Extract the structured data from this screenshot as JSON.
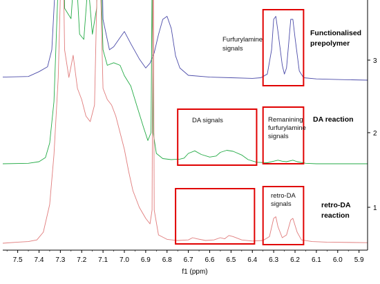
{
  "chart_data": {
    "type": "line",
    "xlabel": "f1 (ppm)",
    "x_axis_reversed": true,
    "xlim": [
      5.86,
      7.57
    ],
    "x_ticks": [
      "7.5",
      "7.4",
      "7.3",
      "7.2",
      "7.1",
      "7.0",
      "6.9",
      "6.8",
      "6.7",
      "6.6",
      "6.5",
      "6.4",
      "6.3",
      "6.2",
      "6.1",
      "6.0",
      "5.9"
    ],
    "trace_ticks": [
      "3",
      "2",
      "1"
    ],
    "colors": {
      "trace_1": "#e07b7b",
      "trace_2": "#22aa44",
      "trace_3": "#4a4aa8",
      "box": "#e00000"
    },
    "series": [
      {
        "label": "3",
        "color": "#4a4aa8",
        "points": [
          [
            7.57,
            0.05
          ],
          [
            7.45,
            0.06
          ],
          [
            7.4,
            0.14
          ],
          [
            7.36,
            0.22
          ],
          [
            7.34,
            0.5
          ],
          [
            7.31,
            2.5
          ],
          [
            7.29,
            6.0
          ],
          [
            7.27,
            2.5
          ],
          [
            7.25,
            2.3
          ],
          [
            7.23,
            5.0
          ],
          [
            7.21,
            2.0
          ],
          [
            7.19,
            1.9
          ],
          [
            7.17,
            4.5
          ],
          [
            7.15,
            1.8
          ],
          [
            7.13,
            2.0
          ],
          [
            7.12,
            5.0
          ],
          [
            7.1,
            1.0
          ],
          [
            7.07,
            0.5
          ],
          [
            7.05,
            0.55
          ],
          [
            7.02,
            0.7
          ],
          [
            7.0,
            0.8
          ],
          [
            6.97,
            0.6
          ],
          [
            6.93,
            0.35
          ],
          [
            6.9,
            0.2
          ],
          [
            6.88,
            0.28
          ],
          [
            6.86,
            0.45
          ],
          [
            6.84,
            0.75
          ],
          [
            6.82,
            1.0
          ],
          [
            6.8,
            1.05
          ],
          [
            6.78,
            0.85
          ],
          [
            6.76,
            0.4
          ],
          [
            6.74,
            0.2
          ],
          [
            6.7,
            0.08
          ],
          [
            6.6,
            0.05
          ],
          [
            6.5,
            0.04
          ],
          [
            6.4,
            0.03
          ],
          [
            6.36,
            0.04
          ],
          [
            6.33,
            0.1
          ],
          [
            6.31,
            0.5
          ],
          [
            6.3,
            1.0
          ],
          [
            6.29,
            1.05
          ],
          [
            6.28,
            0.8
          ],
          [
            6.26,
            0.25
          ],
          [
            6.25,
            0.1
          ],
          [
            6.24,
            0.2
          ],
          [
            6.23,
            0.6
          ],
          [
            6.22,
            1.0
          ],
          [
            6.21,
            1.0
          ],
          [
            6.2,
            0.7
          ],
          [
            6.18,
            0.15
          ],
          [
            6.16,
            0.04
          ],
          [
            6.1,
            0.02
          ],
          [
            6.0,
            0.01
          ],
          [
            5.86,
            0.0
          ]
        ]
      },
      {
        "label": "2",
        "color": "#22aa44",
        "points": [
          [
            7.57,
            0.0
          ],
          [
            7.45,
            0.01
          ],
          [
            7.4,
            0.04
          ],
          [
            7.37,
            0.12
          ],
          [
            7.35,
            0.4
          ],
          [
            7.33,
            1.2
          ],
          [
            7.31,
            3.5
          ],
          [
            7.29,
            6.0
          ],
          [
            7.28,
            3.0
          ],
          [
            7.25,
            2.8
          ],
          [
            7.23,
            4.0
          ],
          [
            7.21,
            2.5
          ],
          [
            7.19,
            2.4
          ],
          [
            7.17,
            3.5
          ],
          [
            7.15,
            2.5
          ],
          [
            7.13,
            3.0
          ],
          [
            7.12,
            5.0
          ],
          [
            7.1,
            2.2
          ],
          [
            7.08,
            1.9
          ],
          [
            7.05,
            1.95
          ],
          [
            7.02,
            1.9
          ],
          [
            7.0,
            1.7
          ],
          [
            6.97,
            1.5
          ],
          [
            6.94,
            1.1
          ],
          [
            6.91,
            0.7
          ],
          [
            6.89,
            0.45
          ],
          [
            6.875,
            0.6
          ],
          [
            6.87,
            3.5
          ],
          [
            6.865,
            0.6
          ],
          [
            6.85,
            0.2
          ],
          [
            6.82,
            0.1
          ],
          [
            6.78,
            0.08
          ],
          [
            6.74,
            0.09
          ],
          [
            6.72,
            0.11
          ],
          [
            6.7,
            0.2
          ],
          [
            6.67,
            0.25
          ],
          [
            6.64,
            0.18
          ],
          [
            6.6,
            0.13
          ],
          [
            6.57,
            0.15
          ],
          [
            6.55,
            0.22
          ],
          [
            6.52,
            0.26
          ],
          [
            6.49,
            0.24
          ],
          [
            6.45,
            0.17
          ],
          [
            6.42,
            0.08
          ],
          [
            6.38,
            0.03
          ],
          [
            6.33,
            0.02
          ],
          [
            6.3,
            0.05
          ],
          [
            6.28,
            0.07
          ],
          [
            6.26,
            0.05
          ],
          [
            6.24,
            0.04
          ],
          [
            6.21,
            0.07
          ],
          [
            6.19,
            0.04
          ],
          [
            6.15,
            0.01
          ],
          [
            6.1,
            0.0
          ],
          [
            5.86,
            0.0
          ]
        ]
      },
      {
        "label": "1",
        "color": "#e07b7b",
        "points": [
          [
            7.57,
            0.0
          ],
          [
            7.5,
            0.02
          ],
          [
            7.45,
            0.03
          ],
          [
            7.41,
            0.06
          ],
          [
            7.38,
            0.2
          ],
          [
            7.35,
            0.7
          ],
          [
            7.33,
            1.6
          ],
          [
            7.31,
            3.0
          ],
          [
            7.29,
            6.0
          ],
          [
            7.28,
            3.5
          ],
          [
            7.26,
            3.0
          ],
          [
            7.24,
            3.4
          ],
          [
            7.22,
            2.8
          ],
          [
            7.2,
            2.6
          ],
          [
            7.18,
            2.3
          ],
          [
            7.16,
            2.2
          ],
          [
            7.14,
            2.5
          ],
          [
            7.12,
            6.0
          ],
          [
            7.1,
            2.8
          ],
          [
            7.08,
            2.6
          ],
          [
            7.06,
            2.5
          ],
          [
            7.04,
            2.3
          ],
          [
            7.02,
            2.0
          ],
          [
            7.0,
            1.7
          ],
          [
            6.98,
            1.3
          ],
          [
            6.96,
            0.95
          ],
          [
            6.93,
            0.65
          ],
          [
            6.9,
            0.45
          ],
          [
            6.88,
            0.35
          ],
          [
            6.87,
            0.6
          ],
          [
            6.865,
            6.0
          ],
          [
            6.86,
            0.6
          ],
          [
            6.84,
            0.15
          ],
          [
            6.8,
            0.07
          ],
          [
            6.75,
            0.05
          ],
          [
            6.7,
            0.06
          ],
          [
            6.68,
            0.1
          ],
          [
            6.66,
            0.08
          ],
          [
            6.62,
            0.05
          ],
          [
            6.58,
            0.06
          ],
          [
            6.55,
            0.1
          ],
          [
            6.53,
            0.08
          ],
          [
            6.51,
            0.14
          ],
          [
            6.49,
            0.12
          ],
          [
            6.45,
            0.06
          ],
          [
            6.4,
            0.04
          ],
          [
            6.35,
            0.05
          ],
          [
            6.32,
            0.12
          ],
          [
            6.3,
            0.45
          ],
          [
            6.29,
            0.48
          ],
          [
            6.28,
            0.3
          ],
          [
            6.26,
            0.1
          ],
          [
            6.24,
            0.15
          ],
          [
            6.22,
            0.42
          ],
          [
            6.21,
            0.45
          ],
          [
            6.19,
            0.2
          ],
          [
            6.17,
            0.06
          ],
          [
            6.12,
            0.03
          ],
          [
            6.05,
            0.02
          ],
          [
            5.86,
            0.01
          ]
        ]
      }
    ],
    "boxes": [
      {
        "x_range": [
          6.35,
          6.16
        ],
        "trace": "3",
        "text": "",
        "bold": false
      },
      {
        "x_range": [
          6.75,
          6.38
        ],
        "trace": "2",
        "text": "DA signals",
        "bold": false
      },
      {
        "x_range": [
          6.35,
          6.16
        ],
        "trace": "2",
        "text": "Remanining furfurylamine signals",
        "bold": false
      },
      {
        "x_range": [
          6.76,
          6.39
        ],
        "trace": "1",
        "text": "",
        "bold": false
      },
      {
        "x_range": [
          6.35,
          6.16
        ],
        "trace": "1",
        "text": "retro-DA signals",
        "bold": false
      }
    ],
    "annotations": [
      {
        "text": "Furfurylamine signals",
        "lines": [
          "Furfurylamine",
          "signals"
        ]
      },
      {
        "text": "Functionalised prepolymer",
        "lines": [
          "Functionalised",
          "prepolymer"
        ]
      },
      {
        "text": "DA reaction",
        "lines": [
          "DA reaction"
        ]
      },
      {
        "text": "DA signals",
        "lines": [
          "DA signals"
        ]
      },
      {
        "text": "Remanining furfurylamine signals",
        "lines": [
          "Remanining",
          "furfurylamine",
          "signals"
        ]
      },
      {
        "text": "retro-DA signals",
        "lines": [
          "retro-DA",
          "signals"
        ]
      },
      {
        "text": "retro-DA reaction",
        "lines": [
          "retro-DA",
          "reaction"
        ]
      }
    ]
  }
}
